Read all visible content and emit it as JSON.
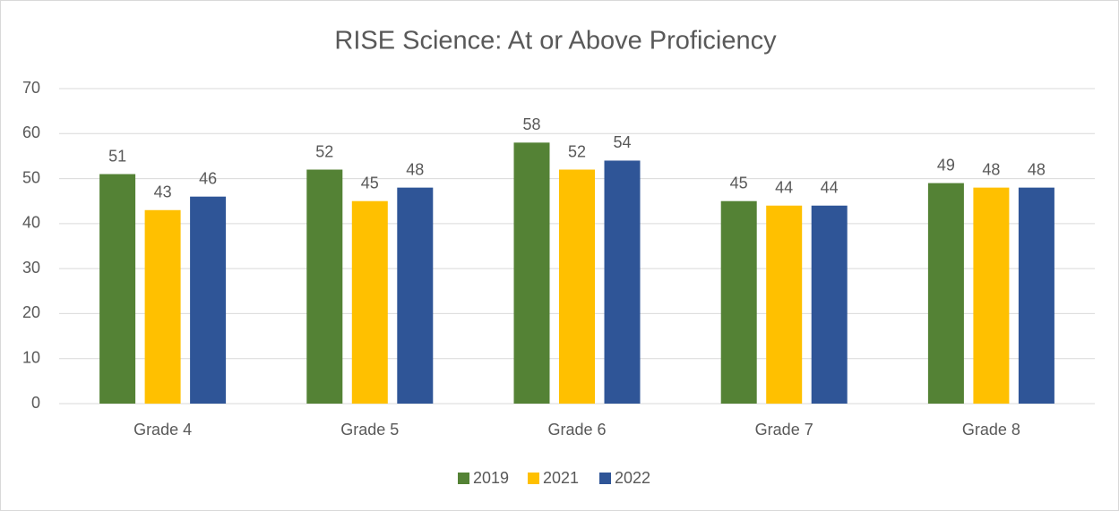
{
  "chart_data": {
    "type": "bar",
    "title": "RISE Science: At or Above Proficiency",
    "categories": [
      "Grade 4",
      "Grade 5",
      "Grade 6",
      "Grade 7",
      "Grade 8"
    ],
    "series": [
      {
        "name": "2019",
        "color": "#548235",
        "values": [
          51,
          52,
          58,
          45,
          49
        ]
      },
      {
        "name": "2021",
        "color": "#ffc000",
        "values": [
          43,
          45,
          52,
          44,
          48
        ]
      },
      {
        "name": "2022",
        "color": "#2f5597",
        "values": [
          46,
          48,
          54,
          44,
          48
        ]
      }
    ],
    "ylim": [
      0,
      70
    ],
    "yticks": [
      0,
      10,
      20,
      30,
      40,
      50,
      60,
      70
    ],
    "grid": true,
    "legend": "bottom"
  }
}
